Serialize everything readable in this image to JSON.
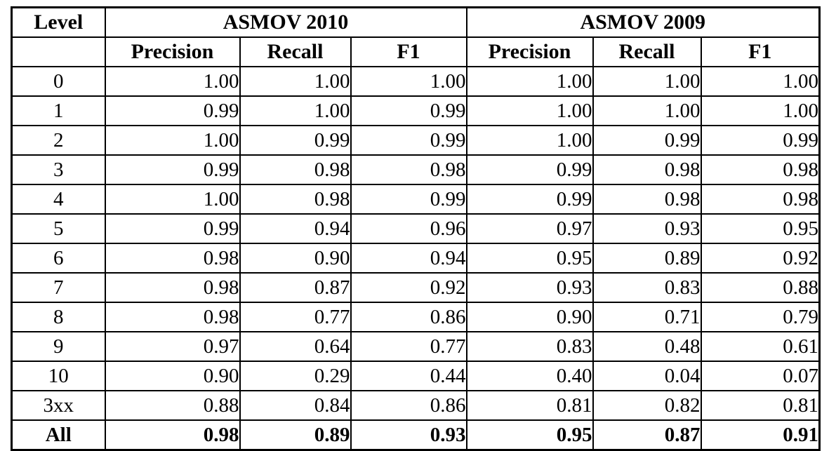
{
  "table": {
    "corner_header": "Level",
    "corner_subheader": "",
    "group_headers": [
      "ASMOV 2010",
      "ASMOV 2009"
    ],
    "metric_headers": [
      "Precision",
      "Recall",
      "F1"
    ],
    "rows": [
      {
        "level": "0",
        "asmov2010": [
          "1.00",
          "1.00",
          "1.00"
        ],
        "asmov2009": [
          "1.00",
          "1.00",
          "1.00"
        ],
        "bold": false
      },
      {
        "level": "1",
        "asmov2010": [
          "0.99",
          "1.00",
          "0.99"
        ],
        "asmov2009": [
          "1.00",
          "1.00",
          "1.00"
        ],
        "bold": false
      },
      {
        "level": "2",
        "asmov2010": [
          "1.00",
          "0.99",
          "0.99"
        ],
        "asmov2009": [
          "1.00",
          "0.99",
          "0.99"
        ],
        "bold": false
      },
      {
        "level": "3",
        "asmov2010": [
          "0.99",
          "0.98",
          "0.98"
        ],
        "asmov2009": [
          "0.99",
          "0.98",
          "0.98"
        ],
        "bold": false
      },
      {
        "level": "4",
        "asmov2010": [
          "1.00",
          "0.98",
          "0.99"
        ],
        "asmov2009": [
          "0.99",
          "0.98",
          "0.98"
        ],
        "bold": false
      },
      {
        "level": "5",
        "asmov2010": [
          "0.99",
          "0.94",
          "0.96"
        ],
        "asmov2009": [
          "0.97",
          "0.93",
          "0.95"
        ],
        "bold": false
      },
      {
        "level": "6",
        "asmov2010": [
          "0.98",
          "0.90",
          "0.94"
        ],
        "asmov2009": [
          "0.95",
          "0.89",
          "0.92"
        ],
        "bold": false
      },
      {
        "level": "7",
        "asmov2010": [
          "0.98",
          "0.87",
          "0.92"
        ],
        "asmov2009": [
          "0.93",
          "0.83",
          "0.88"
        ],
        "bold": false
      },
      {
        "level": "8",
        "asmov2010": [
          "0.98",
          "0.77",
          "0.86"
        ],
        "asmov2009": [
          "0.90",
          "0.71",
          "0.79"
        ],
        "bold": false
      },
      {
        "level": "9",
        "asmov2010": [
          "0.97",
          "0.64",
          "0.77"
        ],
        "asmov2009": [
          "0.83",
          "0.48",
          "0.61"
        ],
        "bold": false
      },
      {
        "level": "10",
        "asmov2010": [
          "0.90",
          "0.29",
          "0.44"
        ],
        "asmov2009": [
          "0.40",
          "0.04",
          "0.07"
        ],
        "bold": false
      },
      {
        "level": "3xx",
        "asmov2010": [
          "0.88",
          "0.84",
          "0.86"
        ],
        "asmov2009": [
          "0.81",
          "0.82",
          "0.81"
        ],
        "bold": false
      },
      {
        "level": "All",
        "asmov2010": [
          "0.98",
          "0.89",
          "0.93"
        ],
        "asmov2009": [
          "0.95",
          "0.87",
          "0.91"
        ],
        "bold": true
      }
    ]
  },
  "chart_data": {
    "type": "table",
    "columns": [
      "Level",
      "ASMOV 2010 Precision",
      "ASMOV 2010 Recall",
      "ASMOV 2010 F1",
      "ASMOV 2009 Precision",
      "ASMOV 2009 Recall",
      "ASMOV 2009 F1"
    ],
    "rows": [
      [
        "0",
        1.0,
        1.0,
        1.0,
        1.0,
        1.0,
        1.0
      ],
      [
        "1",
        0.99,
        1.0,
        0.99,
        1.0,
        1.0,
        1.0
      ],
      [
        "2",
        1.0,
        0.99,
        0.99,
        1.0,
        0.99,
        0.99
      ],
      [
        "3",
        0.99,
        0.98,
        0.98,
        0.99,
        0.98,
        0.98
      ],
      [
        "4",
        1.0,
        0.98,
        0.99,
        0.99,
        0.98,
        0.98
      ],
      [
        "5",
        0.99,
        0.94,
        0.96,
        0.97,
        0.93,
        0.95
      ],
      [
        "6",
        0.98,
        0.9,
        0.94,
        0.95,
        0.89,
        0.92
      ],
      [
        "7",
        0.98,
        0.87,
        0.92,
        0.93,
        0.83,
        0.88
      ],
      [
        "8",
        0.98,
        0.77,
        0.86,
        0.9,
        0.71,
        0.79
      ],
      [
        "9",
        0.97,
        0.64,
        0.77,
        0.83,
        0.48,
        0.61
      ],
      [
        "10",
        0.9,
        0.29,
        0.44,
        0.4,
        0.04,
        0.07
      ],
      [
        "3xx",
        0.88,
        0.84,
        0.86,
        0.81,
        0.82,
        0.81
      ],
      [
        "All",
        0.98,
        0.89,
        0.93,
        0.95,
        0.87,
        0.91
      ]
    ]
  }
}
